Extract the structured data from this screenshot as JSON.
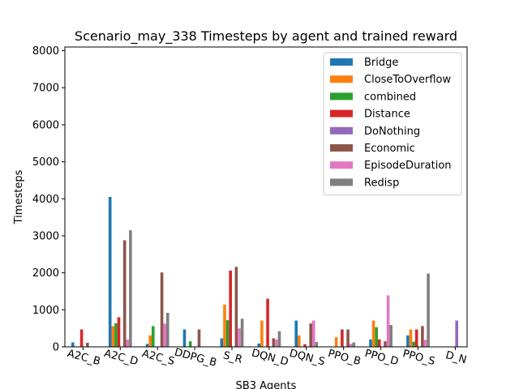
{
  "chart_data": {
    "type": "bar",
    "title": "Scenario_may_338 Timesteps by agent and trained reward",
    "xlabel": "SB3 Agents",
    "ylabel": "Timesteps",
    "ylim": [
      0,
      8100
    ],
    "yticks": [
      0,
      1000,
      2000,
      3000,
      4000,
      5000,
      6000,
      7000,
      8000
    ],
    "grid": false,
    "legend_position": "top-right",
    "categories": [
      "A2C_B",
      "A2C_D",
      "A2C_S",
      "DDPG_B",
      "S_R",
      "DQN_D",
      "DQN_S",
      "PPO_B",
      "PPO_D",
      "PPO_S",
      "D_N"
    ],
    "series": [
      {
        "name": "Bridge",
        "color": "#1f77b4",
        "values": [
          120,
          4050,
          80,
          470,
          230,
          90,
          710,
          0,
          200,
          310,
          0
        ]
      },
      {
        "name": "CloseToOverflow",
        "color": "#ff7f0e",
        "values": [
          0,
          560,
          310,
          0,
          1140,
          710,
          310,
          260,
          710,
          470,
          0
        ]
      },
      {
        "name": "combined",
        "color": "#2ca02c",
        "values": [
          0,
          640,
          560,
          150,
          720,
          0,
          0,
          0,
          530,
          140,
          0
        ]
      },
      {
        "name": "Distance",
        "color": "#d62728",
        "values": [
          470,
          800,
          0,
          0,
          2060,
          1300,
          70,
          470,
          200,
          470,
          0
        ]
      },
      {
        "name": "DoNothing",
        "color": "#9467bd",
        "values": [
          0,
          0,
          0,
          0,
          0,
          0,
          0,
          0,
          0,
          0,
          710
        ]
      },
      {
        "name": "Economic",
        "color": "#8c564b",
        "values": [
          110,
          2880,
          2010,
          470,
          2160,
          230,
          630,
          470,
          150,
          560,
          0
        ]
      },
      {
        "name": "EpisodeDuration",
        "color": "#e377c2",
        "values": [
          0,
          200,
          630,
          0,
          500,
          200,
          710,
          80,
          1390,
          190,
          0
        ]
      },
      {
        "name": "Redisp",
        "color": "#7f7f7f",
        "values": [
          0,
          3150,
          920,
          0,
          760,
          420,
          130,
          120,
          590,
          1980,
          0
        ]
      }
    ]
  }
}
